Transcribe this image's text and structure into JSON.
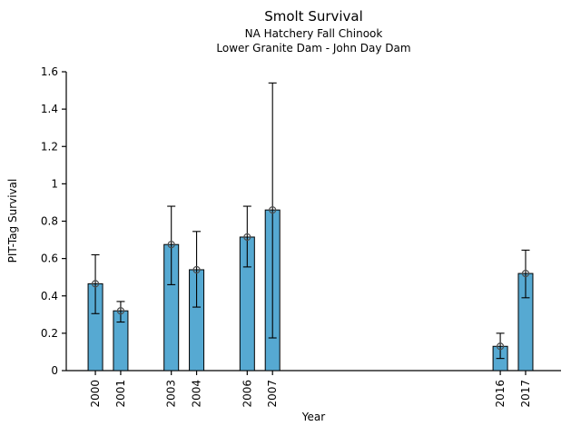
{
  "chart_data": {
    "type": "bar",
    "title": "Smolt Survival",
    "subtitle": [
      "NA Hatchery Fall Chinook",
      "Lower Granite Dam - John Day Dam"
    ],
    "xlabel": "Year",
    "ylabel": "PIT-Tag Survival",
    "categories": [
      "2000",
      "2001",
      "2003",
      "2004",
      "2006",
      "2007",
      "2016",
      "2017"
    ],
    "x_years": [
      2000,
      2001,
      2003,
      2004,
      2006,
      2007,
      2016,
      2017
    ],
    "values": [
      0.465,
      0.32,
      0.675,
      0.54,
      0.715,
      0.86,
      0.13,
      0.52
    ],
    "error_low": [
      0.305,
      0.26,
      0.46,
      0.34,
      0.555,
      0.175,
      0.065,
      0.39
    ],
    "error_high": [
      0.62,
      0.37,
      0.88,
      0.745,
      0.88,
      1.54,
      0.2,
      0.645
    ],
    "ylim": [
      0,
      1.6
    ],
    "yticks": [
      0,
      0.2,
      0.4,
      0.6,
      0.8,
      1,
      1.2,
      1.4,
      1.6
    ],
    "ytick_labels": [
      "0",
      "0.2",
      "0.4",
      "0.6",
      "0.8",
      "1",
      "1.2",
      "1.4",
      "1.6"
    ],
    "xlim": [
      1998.85,
      2018.4
    ],
    "grid": false,
    "legend": false,
    "bar_color": "#56A9D2",
    "bar_edge_color": "#000000",
    "error_color": "#000000",
    "marker": "open-circle",
    "marker_color": "#4d4d4d",
    "axis_color": "#000000"
  }
}
